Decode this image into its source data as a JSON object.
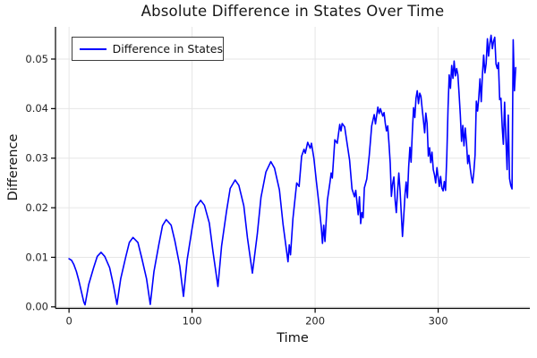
{
  "chart_data": {
    "type": "line",
    "title": "Absolute Difference in States Over Time",
    "xlabel": "Time",
    "ylabel": "Difference",
    "grid": true,
    "legend": {
      "position": "top-left",
      "entries": [
        {
          "label": "Difference in States",
          "color": "#0000ff"
        }
      ]
    },
    "xlim": [
      -11,
      374.5
    ],
    "ylim": [
      -0.0003,
      0.0565
    ],
    "x_ticks": [
      {
        "value": 0,
        "label": "0"
      },
      {
        "value": 100,
        "label": "100"
      },
      {
        "value": 200,
        "label": "200"
      },
      {
        "value": 300,
        "label": "300"
      }
    ],
    "y_ticks": [
      {
        "value": 0.0,
        "label": "0.00"
      },
      {
        "value": 0.01,
        "label": "0.01"
      },
      {
        "value": 0.02,
        "label": "0.02"
      },
      {
        "value": 0.03,
        "label": "0.03"
      },
      {
        "value": 0.04,
        "label": "0.04"
      },
      {
        "value": 0.05,
        "label": "0.05"
      }
    ],
    "colors": {
      "line": "#0000ff",
      "grid": "#e6e6e6",
      "axis": "#000000",
      "tick_text": "#262626",
      "title_text": "#161616"
    },
    "series": [
      {
        "name": "Difference in States",
        "color": "#0000ff",
        "points": [
          [
            0,
            0.0097
          ],
          [
            2,
            0.0094
          ],
          [
            4,
            0.0085
          ],
          [
            6,
            0.0071
          ],
          [
            8,
            0.0053
          ],
          [
            10,
            0.0031
          ],
          [
            12,
            0.001
          ],
          [
            13,
            0.0004
          ],
          [
            16,
            0.0045
          ],
          [
            20,
            0.0079
          ],
          [
            23,
            0.0102
          ],
          [
            26,
            0.011
          ],
          [
            29,
            0.0102
          ],
          [
            33,
            0.0079
          ],
          [
            36,
            0.0045
          ],
          [
            39,
            0.0005
          ],
          [
            42,
            0.0057
          ],
          [
            46,
            0.01
          ],
          [
            49,
            0.013
          ],
          [
            52,
            0.014
          ],
          [
            56,
            0.013
          ],
          [
            59,
            0.01
          ],
          [
            63,
            0.0057
          ],
          [
            66,
            0.0005
          ],
          [
            69,
            0.0071
          ],
          [
            73,
            0.0126
          ],
          [
            76,
            0.0164
          ],
          [
            79,
            0.0176
          ],
          [
            83,
            0.0165
          ],
          [
            86,
            0.0133
          ],
          [
            90,
            0.0082
          ],
          [
            93,
            0.0021
          ],
          [
            96,
            0.0095
          ],
          [
            100,
            0.0158
          ],
          [
            103,
            0.0201
          ],
          [
            107,
            0.0215
          ],
          [
            110,
            0.0205
          ],
          [
            114,
            0.0169
          ],
          [
            117,
            0.0111
          ],
          [
            121,
            0.0041
          ],
          [
            124,
            0.0123
          ],
          [
            128,
            0.0193
          ],
          [
            131,
            0.0239
          ],
          [
            135,
            0.0256
          ],
          [
            138,
            0.0245
          ],
          [
            142,
            0.0204
          ],
          [
            145,
            0.0139
          ],
          [
            149,
            0.0068
          ],
          [
            153,
            0.0147
          ],
          [
            156,
            0.0221
          ],
          [
            160,
            0.0272
          ],
          [
            164,
            0.0293
          ],
          [
            167,
            0.028
          ],
          [
            171,
            0.0236
          ],
          [
            174,
            0.0166
          ],
          [
            178,
            0.0091
          ],
          [
            179,
            0.0125
          ],
          [
            180,
            0.0105
          ],
          [
            182,
            0.0178
          ],
          [
            185,
            0.025
          ],
          [
            187,
            0.0243
          ],
          [
            189,
            0.0304
          ],
          [
            191,
            0.0318
          ],
          [
            192,
            0.031
          ],
          [
            194,
            0.0332
          ],
          [
            196,
            0.032
          ],
          [
            197,
            0.033
          ],
          [
            199,
            0.03
          ],
          [
            201,
            0.0253
          ],
          [
            203,
            0.021
          ],
          [
            205,
            0.016
          ],
          [
            206,
            0.0128
          ],
          [
            207,
            0.0165
          ],
          [
            208,
            0.0132
          ],
          [
            210,
            0.0215
          ],
          [
            212,
            0.025
          ],
          [
            213,
            0.027
          ],
          [
            214,
            0.026
          ],
          [
            216,
            0.0337
          ],
          [
            218,
            0.033
          ],
          [
            220,
            0.0368
          ],
          [
            221,
            0.0355
          ],
          [
            222,
            0.037
          ],
          [
            224,
            0.0363
          ],
          [
            226,
            0.033
          ],
          [
            228,
            0.0296
          ],
          [
            230,
            0.0238
          ],
          [
            232,
            0.0222
          ],
          [
            233,
            0.0235
          ],
          [
            235,
            0.0186
          ],
          [
            236,
            0.0222
          ],
          [
            237,
            0.0168
          ],
          [
            238,
            0.019
          ],
          [
            239,
            0.018
          ],
          [
            240,
            0.024
          ],
          [
            242,
            0.0258
          ],
          [
            244,
            0.0306
          ],
          [
            246,
            0.0365
          ],
          [
            248,
            0.0388
          ],
          [
            249,
            0.0369
          ],
          [
            251,
            0.0403
          ],
          [
            252,
            0.039
          ],
          [
            253,
            0.04
          ],
          [
            255,
            0.0385
          ],
          [
            256,
            0.0392
          ],
          [
            257,
            0.037
          ],
          [
            258,
            0.0355
          ],
          [
            259,
            0.0365
          ],
          [
            260,
            0.033
          ],
          [
            261,
            0.029
          ],
          [
            262,
            0.0223
          ],
          [
            263,
            0.0248
          ],
          [
            264,
            0.0262
          ],
          [
            265,
            0.0215
          ],
          [
            266,
            0.019
          ],
          [
            267,
            0.0232
          ],
          [
            268,
            0.027
          ],
          [
            269,
            0.0235
          ],
          [
            270,
            0.019
          ],
          [
            271,
            0.0142
          ],
          [
            272,
            0.0182
          ],
          [
            273,
            0.0226
          ],
          [
            274,
            0.0252
          ],
          [
            275,
            0.022
          ],
          [
            276,
            0.0282
          ],
          [
            277,
            0.0322
          ],
          [
            278,
            0.0292
          ],
          [
            279,
            0.0352
          ],
          [
            280,
            0.0402
          ],
          [
            281,
            0.0382
          ],
          [
            282,
            0.0421
          ],
          [
            283,
            0.0436
          ],
          [
            284,
            0.041
          ],
          [
            285,
            0.0431
          ],
          [
            286,
            0.0425
          ],
          [
            287,
            0.04
          ],
          [
            288,
            0.0376
          ],
          [
            289,
            0.0351
          ],
          [
            290,
            0.0391
          ],
          [
            291,
            0.037
          ],
          [
            292,
            0.0304
          ],
          [
            293,
            0.0321
          ],
          [
            294,
            0.0291
          ],
          [
            295,
            0.0312
          ],
          [
            296,
            0.0277
          ],
          [
            297,
            0.0266
          ],
          [
            298,
            0.025
          ],
          [
            299,
            0.0281
          ],
          [
            300,
            0.0261
          ],
          [
            301,
            0.0243
          ],
          [
            302,
            0.0263
          ],
          [
            303,
            0.024
          ],
          [
            304,
            0.0234
          ],
          [
            305,
            0.0253
          ],
          [
            306,
            0.0235
          ],
          [
            307,
            0.0302
          ],
          [
            308,
            0.0401
          ],
          [
            309,
            0.0468
          ],
          [
            310,
            0.0441
          ],
          [
            311,
            0.0487
          ],
          [
            312,
            0.0461
          ],
          [
            313,
            0.0496
          ],
          [
            314,
            0.0466
          ],
          [
            315,
            0.0481
          ],
          [
            316,
            0.0468
          ],
          [
            317,
            0.0431
          ],
          [
            318,
            0.0388
          ],
          [
            319,
            0.0334
          ],
          [
            320,
            0.0366
          ],
          [
            321,
            0.0325
          ],
          [
            322,
            0.0361
          ],
          [
            323,
            0.0331
          ],
          [
            324,
            0.0289
          ],
          [
            325,
            0.0306
          ],
          [
            326,
            0.0281
          ],
          [
            327,
            0.0262
          ],
          [
            328,
            0.025
          ],
          [
            329,
            0.0272
          ],
          [
            330,
            0.0306
          ],
          [
            331,
            0.0415
          ],
          [
            332,
            0.0395
          ],
          [
            333,
            0.0421
          ],
          [
            334,
            0.046
          ],
          [
            335,
            0.0414
          ],
          [
            336,
            0.0471
          ],
          [
            337,
            0.0508
          ],
          [
            338,
            0.0472
          ],
          [
            339,
            0.0491
          ],
          [
            340,
            0.0541
          ],
          [
            341,
            0.0506
          ],
          [
            342,
            0.0531
          ],
          [
            343,
            0.0548
          ],
          [
            344,
            0.0521
          ],
          [
            345,
            0.0536
          ],
          [
            346,
            0.0544
          ],
          [
            347,
            0.049
          ],
          [
            348,
            0.0481
          ],
          [
            349,
            0.0493
          ],
          [
            350,
            0.0418
          ],
          [
            351,
            0.0421
          ],
          [
            352,
            0.0364
          ],
          [
            353,
            0.0328
          ],
          [
            354,
            0.0413
          ],
          [
            355,
            0.0341
          ],
          [
            356,
            0.0277
          ],
          [
            357,
            0.0387
          ],
          [
            358,
            0.0259
          ],
          [
            359,
            0.0245
          ],
          [
            360,
            0.0238
          ],
          [
            361,
            0.0539
          ],
          [
            362,
            0.0436
          ],
          [
            363,
            0.0483
          ]
        ]
      }
    ]
  }
}
